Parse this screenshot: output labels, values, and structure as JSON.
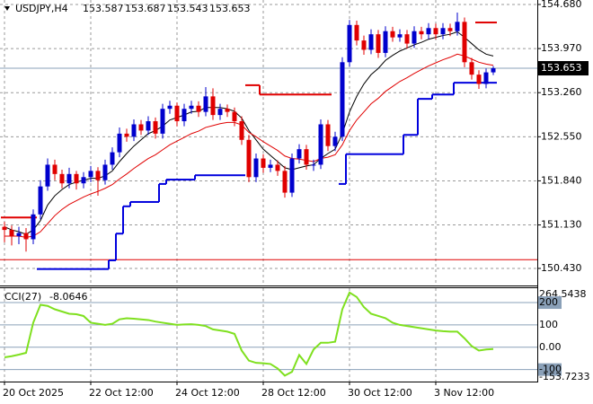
{
  "chart_data": {
    "type": "candlestick",
    "symbol": "USDJPY,H4",
    "open": [
      151.1,
      151.05,
      150.95,
      151.0,
      150.9,
      151.3,
      151.75,
      152.1,
      151.95,
      151.8,
      151.95,
      151.8,
      151.9,
      152.0,
      151.85,
      152.1,
      152.3,
      152.6,
      152.55,
      152.75,
      152.65,
      152.8,
      152.6,
      153.0,
      153.05,
      152.8,
      153.0,
      153.05,
      152.95,
      153.2,
      152.9,
      153.0,
      152.95,
      152.8,
      152.5,
      151.9,
      152.2,
      152.05,
      152.1,
      152.0,
      151.65,
      152.2,
      152.35,
      152.1,
      152.1,
      152.75,
      152.4,
      152.55,
      153.75,
      154.35,
      154.1,
      153.95,
      154.2,
      153.9,
      154.25,
      154.15,
      154.2,
      154.05,
      154.25,
      154.2,
      154.3,
      154.2,
      154.3,
      154.25,
      154.4,
      153.75,
      153.55,
      153.4,
      153.587
    ],
    "high": [
      151.18,
      151.12,
      151.1,
      151.08,
      151.38,
      151.85,
      152.2,
      152.18,
      152.02,
      152.05,
      152.0,
      151.98,
      152.08,
      152.06,
      152.18,
      152.38,
      152.7,
      152.68,
      152.83,
      152.82,
      152.88,
      152.86,
      153.08,
      153.13,
      153.1,
      153.08,
      153.13,
      153.12,
      153.35,
      153.33,
      153.08,
      153.07,
      153.02,
      152.88,
      152.58,
      152.28,
      152.27,
      152.18,
      152.17,
      152.08,
      152.28,
      152.43,
      152.42,
      152.18,
      152.83,
      152.82,
      152.63,
      153.83,
      154.43,
      154.42,
      154.18,
      154.28,
      154.27,
      154.33,
      154.32,
      154.28,
      154.27,
      154.33,
      154.32,
      154.38,
      154.37,
      154.38,
      154.37,
      154.55,
      154.47,
      153.82,
      153.62,
      153.65,
      153.687
    ],
    "low": [
      150.85,
      150.8,
      150.82,
      150.7,
      150.82,
      151.22,
      151.68,
      151.85,
      151.72,
      151.72,
      151.7,
      151.72,
      151.82,
      151.6,
      151.78,
      152.02,
      152.22,
      152.47,
      152.48,
      152.58,
      152.58,
      152.52,
      152.52,
      152.92,
      152.72,
      152.72,
      152.92,
      152.87,
      152.88,
      152.82,
      152.82,
      152.87,
      152.72,
      152.42,
      151.82,
      151.82,
      151.97,
      151.98,
      151.92,
      151.57,
      151.58,
      152.12,
      152.02,
      152.0,
      152.03,
      152.32,
      152.32,
      152.48,
      153.68,
      154.02,
      153.87,
      153.88,
      153.82,
      153.83,
      154.08,
      154.08,
      153.97,
      153.98,
      154.12,
      154.12,
      154.12,
      154.12,
      154.17,
      154.18,
      153.67,
      153.47,
      153.32,
      153.33,
      153.543
    ],
    "close": [
      151.05,
      150.95,
      151.0,
      150.9,
      151.3,
      151.75,
      152.1,
      151.95,
      151.8,
      151.95,
      151.8,
      151.9,
      152.0,
      151.85,
      152.1,
      152.3,
      152.6,
      152.55,
      152.75,
      152.65,
      152.8,
      152.6,
      153.0,
      153.05,
      152.8,
      153.0,
      153.05,
      152.95,
      153.2,
      152.9,
      153.0,
      152.95,
      152.8,
      152.5,
      151.9,
      152.2,
      152.05,
      152.1,
      152.0,
      151.65,
      152.2,
      152.35,
      152.1,
      152.1,
      152.75,
      152.4,
      152.55,
      153.75,
      154.35,
      154.1,
      153.95,
      154.2,
      153.9,
      154.25,
      154.15,
      154.2,
      154.05,
      154.25,
      154.2,
      154.3,
      154.2,
      154.3,
      154.25,
      154.4,
      153.75,
      153.55,
      153.4,
      153.587,
      153.653
    ],
    "up_color": "#0000cd",
    "down_color": "#e00000",
    "lines": [
      {
        "color": "#000000",
        "values": [
          151.1,
          151.05,
          151.02,
          150.98,
          151.05,
          151.2,
          151.45,
          151.6,
          151.7,
          151.78,
          151.82,
          151.85,
          151.88,
          151.88,
          151.92,
          152.0,
          152.15,
          152.28,
          152.4,
          152.5,
          152.6,
          152.65,
          152.72,
          152.82,
          152.86,
          152.9,
          152.95,
          152.96,
          153.02,
          153.02,
          153.02,
          153.0,
          152.96,
          152.85,
          152.65,
          152.5,
          152.35,
          152.25,
          152.15,
          152.05,
          152.02,
          152.05,
          152.08,
          152.1,
          152.2,
          152.28,
          152.35,
          152.6,
          152.95,
          153.2,
          153.4,
          153.55,
          153.65,
          153.78,
          153.86,
          153.93,
          153.98,
          154.03,
          154.07,
          154.12,
          154.15,
          154.18,
          154.2,
          154.24,
          154.15,
          154.05,
          153.95,
          153.88,
          153.85
        ]
      },
      {
        "color": "#e00000",
        "values": [
          150.95,
          150.95,
          150.95,
          150.93,
          150.95,
          151.02,
          151.15,
          151.28,
          151.38,
          151.46,
          151.52,
          151.58,
          151.63,
          151.67,
          151.72,
          151.78,
          151.87,
          151.95,
          152.04,
          152.12,
          152.2,
          152.26,
          152.34,
          152.42,
          152.48,
          152.54,
          152.6,
          152.64,
          152.7,
          152.73,
          152.76,
          152.78,
          152.78,
          152.74,
          152.62,
          152.55,
          152.47,
          152.4,
          152.33,
          152.24,
          152.2,
          152.19,
          152.17,
          152.15,
          152.2,
          152.22,
          152.26,
          152.42,
          152.65,
          152.82,
          152.95,
          153.08,
          153.17,
          153.28,
          153.36,
          153.44,
          153.5,
          153.57,
          153.63,
          153.69,
          153.74,
          153.79,
          153.83,
          153.88,
          153.85,
          153.8,
          153.75,
          153.72,
          153.7
        ]
      }
    ],
    "steps": [
      {
        "color": "#0000dd",
        "values": [
          null,
          null,
          null,
          null,
          null,
          150.42,
          150.42,
          150.42,
          150.42,
          150.42,
          150.42,
          150.42,
          150.42,
          150.42,
          150.42,
          150.56,
          150.99,
          151.43,
          151.5,
          151.5,
          151.5,
          151.5,
          151.79,
          151.86,
          151.86,
          151.86,
          151.86,
          151.93,
          151.93,
          151.93,
          151.93,
          151.93,
          151.93,
          151.93,
          null,
          null,
          null,
          null,
          null,
          null,
          null,
          null,
          null,
          null,
          null,
          null,
          null,
          151.79,
          152.27,
          152.27,
          152.27,
          152.27,
          152.27,
          152.27,
          152.27,
          152.27,
          152.58,
          152.58,
          153.16,
          153.16,
          153.23,
          153.23,
          153.23,
          153.42,
          153.42,
          153.42,
          153.42,
          153.42,
          153.42
        ]
      },
      {
        "color": "#e00000",
        "values": [
          151.25,
          151.25,
          151.25,
          151.25,
          151.25,
          null,
          null,
          null,
          null,
          null,
          null,
          null,
          null,
          null,
          null,
          null,
          null,
          null,
          null,
          null,
          null,
          null,
          null,
          null,
          null,
          null,
          null,
          null,
          null,
          null,
          null,
          null,
          null,
          null,
          153.38,
          153.38,
          153.23,
          153.23,
          153.23,
          153.23,
          153.23,
          153.23,
          153.23,
          153.23,
          153.23,
          153.23,
          null,
          null,
          null,
          null,
          null,
          null,
          null,
          null,
          null,
          null,
          null,
          null,
          null,
          null,
          null,
          null,
          null,
          null,
          null,
          null,
          154.39,
          154.39,
          154.39
        ]
      }
    ],
    "level": {
      "color": "#e00000",
      "value": 150.57
    },
    "ylim": [
      150.155,
      154.752
    ],
    "yticks": [
      {
        "value": 154.68,
        "label": "154.680"
      },
      {
        "value": 153.97,
        "label": "153.970"
      },
      {
        "value": 153.26,
        "label": "153.260"
      },
      {
        "value": 152.55,
        "label": "152.550"
      },
      {
        "value": 151.84,
        "label": "151.840"
      },
      {
        "value": 151.13,
        "label": "151.130"
      },
      {
        "value": 150.43,
        "label": "150.430"
      }
    ],
    "xticks": [
      {
        "value": 0,
        "label": "20 Oct 2025"
      },
      {
        "value": 12,
        "label": "22 Oct 12:00"
      },
      {
        "value": 24,
        "label": "24 Oct 12:00"
      },
      {
        "value": 36,
        "label": "28 Oct 12:00"
      },
      {
        "value": 48,
        "label": "30 Oct 12:00"
      },
      {
        "value": 60,
        "label": "3 Nov 12:00"
      }
    ],
    "cci": {
      "name": "CCI(27)",
      "color": "#7fe01f",
      "values": [
        -45,
        -40,
        -33,
        -25,
        110,
        190,
        185,
        170,
        160,
        150,
        148,
        140,
        110,
        105,
        100,
        105,
        125,
        130,
        128,
        125,
        122,
        115,
        110,
        105,
        100,
        102,
        103,
        100,
        95,
        80,
        75,
        70,
        60,
        -15,
        -60,
        -70,
        -72,
        -75,
        -95,
        -127,
        -110,
        -35,
        -75,
        -10,
        20,
        20,
        25,
        170,
        245,
        225,
        180,
        150,
        140,
        130,
        110,
        100,
        95,
        90,
        85,
        80,
        75,
        72,
        70,
        70,
        40,
        5,
        -15,
        -10,
        -8.0646
      ],
      "ylim": [
        -153.7233,
        264.5438
      ],
      "yticks": [
        264.5438,
        200,
        100,
        {
          "value": 0,
          "label": "0.00"
        },
        -100,
        -153.7233
      ],
      "levels": [
        200,
        100,
        0,
        -100
      ]
    }
  }
}
